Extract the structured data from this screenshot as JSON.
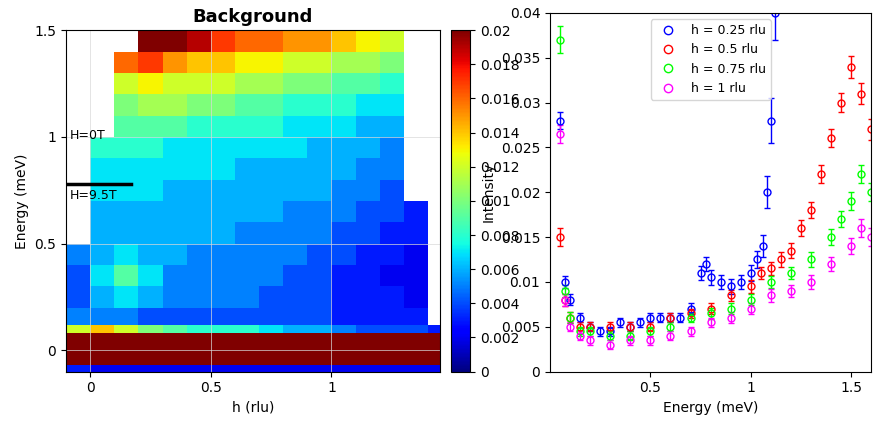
{
  "chart_data": [
    {
      "type": "heatmap",
      "title": "Background",
      "x_label": "h (rlu)",
      "y_label": "Energy (meV)",
      "xlim": [
        -0.1,
        1.45
      ],
      "ylim": [
        -0.1,
        1.5
      ],
      "xticks": [
        0,
        0.5,
        1
      ],
      "yticks": [
        0,
        0.5,
        1,
        1.5
      ],
      "x_edges": [
        -0.1,
        0.0,
        0.1,
        0.2,
        0.3,
        0.4,
        0.5,
        0.6,
        0.7,
        0.8,
        0.9,
        1.0,
        1.1,
        1.2,
        1.3,
        1.4,
        1.5
      ],
      "y_edges": [
        -0.1,
        -0.07,
        0.08,
        0.12,
        0.2,
        0.3,
        0.4,
        0.5,
        0.6,
        0.7,
        0.8,
        0.9,
        1.0,
        1.1,
        1.2,
        1.3,
        1.4,
        1.5
      ],
      "cells": [
        [
          0.003,
          0.002,
          0.002,
          0.002,
          0.002,
          0.002,
          0.002,
          0.002,
          0.002,
          0.002,
          0.002,
          0.002,
          0.002,
          0.002,
          0.002,
          0.002
        ],
        [
          0.05,
          0.05,
          0.05,
          0.05,
          0.05,
          0.05,
          0.05,
          0.05,
          0.05,
          0.05,
          0.05,
          0.05,
          0.05,
          0.05,
          0.05,
          0.05
        ],
        [
          0.012,
          0.014,
          0.012,
          0.01,
          0.009,
          0.008,
          0.008,
          0.008,
          0.007,
          0.006,
          0.006,
          0.005,
          0.004,
          0.004,
          0.004,
          0.003
        ],
        [
          0.005,
          0.005,
          0.005,
          0.004,
          0.004,
          0.004,
          0.004,
          0.004,
          0.004,
          0.004,
          0.004,
          0.003,
          0.003,
          0.003,
          0.003,
          null
        ],
        [
          0.004,
          0.006,
          0.007,
          0.006,
          0.005,
          0.005,
          0.005,
          0.005,
          0.004,
          0.004,
          0.004,
          0.003,
          0.003,
          0.003,
          0.002,
          null
        ],
        [
          0.004,
          0.007,
          0.009,
          0.007,
          0.005,
          0.005,
          0.005,
          0.005,
          0.005,
          0.004,
          0.004,
          0.003,
          0.003,
          0.002,
          0.002,
          null
        ],
        [
          0.005,
          0.006,
          0.007,
          0.006,
          0.006,
          0.005,
          0.005,
          0.005,
          0.005,
          0.005,
          0.004,
          0.004,
          0.003,
          0.003,
          0.002,
          null
        ],
        [
          null,
          0.006,
          0.006,
          0.006,
          0.006,
          0.006,
          0.006,
          0.005,
          0.005,
          0.005,
          0.005,
          0.004,
          0.004,
          0.003,
          0.003,
          null
        ],
        [
          null,
          0.006,
          0.006,
          0.006,
          0.006,
          0.006,
          0.006,
          0.006,
          0.006,
          0.005,
          0.005,
          0.005,
          0.004,
          0.004,
          0.003,
          null
        ],
        [
          null,
          0.007,
          0.007,
          0.007,
          0.006,
          0.006,
          0.006,
          0.006,
          0.006,
          0.006,
          0.006,
          0.005,
          0.005,
          0.004,
          null,
          null
        ],
        [
          null,
          0.007,
          0.007,
          0.007,
          0.007,
          0.007,
          0.007,
          0.006,
          0.006,
          0.006,
          0.006,
          0.006,
          0.005,
          0.005,
          null,
          null
        ],
        [
          null,
          0.008,
          0.008,
          0.008,
          0.007,
          0.007,
          0.007,
          0.007,
          0.007,
          0.007,
          0.006,
          0.006,
          0.006,
          0.005,
          null,
          null
        ],
        [
          null,
          null,
          0.009,
          0.009,
          0.009,
          0.008,
          0.008,
          0.008,
          0.008,
          0.007,
          0.007,
          0.007,
          0.006,
          0.006,
          null,
          null
        ],
        [
          null,
          null,
          0.01,
          0.011,
          0.011,
          0.01,
          0.01,
          0.009,
          0.009,
          0.008,
          0.008,
          0.008,
          0.007,
          0.007,
          null,
          null
        ],
        [
          null,
          null,
          0.012,
          0.013,
          0.012,
          0.012,
          0.012,
          0.011,
          0.011,
          0.01,
          0.01,
          0.009,
          0.009,
          0.008,
          null,
          null
        ],
        [
          null,
          null,
          0.016,
          0.017,
          0.015,
          0.014,
          0.014,
          0.013,
          0.013,
          0.012,
          0.012,
          0.011,
          0.011,
          0.01,
          null,
          null
        ],
        [
          null,
          null,
          null,
          0.022,
          0.02,
          0.019,
          0.017,
          0.016,
          0.016,
          0.015,
          0.015,
          0.014,
          0.013,
          0.012,
          null,
          null
        ]
      ],
      "colorbar_range": [
        0,
        0.02
      ],
      "colorbar_ticks": [
        0,
        0.002,
        0.004,
        0.006,
        0.008,
        0.01,
        0.012,
        0.014,
        0.016,
        0.018,
        0.02
      ],
      "field_boundary": {
        "energy": 0.78,
        "h_start": -0.1,
        "h_end": 0.17
      },
      "annotations": [
        "H=0T",
        "H=9.5T"
      ]
    },
    {
      "type": "errorbar",
      "x_label": "Energy (meV)",
      "y_label": "Intensity",
      "xlim": [
        0,
        1.6
      ],
      "ylim": [
        0,
        0.04
      ],
      "xticks": [
        0.5,
        1,
        1.5
      ],
      "yticks": [
        0,
        0.005,
        0.01,
        0.015,
        0.02,
        0.025,
        0.03,
        0.035,
        0.04
      ],
      "legend": "upper center",
      "marker": "o",
      "series": [
        {
          "name": "h = 0.25 rlu",
          "color": "#0000ff",
          "x": [
            0.05,
            0.075,
            0.1,
            0.15,
            0.2,
            0.25,
            0.3,
            0.35,
            0.4,
            0.45,
            0.5,
            0.55,
            0.6,
            0.65,
            0.7,
            0.75,
            0.775,
            0.8,
            0.85,
            0.9,
            0.95,
            1.0,
            1.03,
            1.06,
            1.08,
            1.1,
            1.12
          ],
          "values": [
            0.028,
            0.01,
            0.008,
            0.006,
            0.005,
            0.0045,
            0.0045,
            0.0055,
            0.005,
            0.0055,
            0.006,
            0.006,
            0.006,
            0.006,
            0.007,
            0.011,
            0.012,
            0.0105,
            0.01,
            0.0095,
            0.01,
            0.011,
            0.0125,
            0.014,
            0.02,
            0.028,
            0.04
          ],
          "errors": [
            0.001,
            0.0007,
            0.0006,
            0.0005,
            0.0005,
            0.0005,
            0.0005,
            0.0005,
            0.0005,
            0.0005,
            0.0005,
            0.0005,
            0.0005,
            0.0005,
            0.0006,
            0.0008,
            0.0008,
            0.0008,
            0.0008,
            0.0008,
            0.0008,
            0.0009,
            0.001,
            0.0012,
            0.0018,
            0.0025,
            0.003
          ]
        },
        {
          "name": "h = 0.5 rlu",
          "color": "#ff0000",
          "x": [
            0.05,
            0.075,
            0.1,
            0.15,
            0.2,
            0.3,
            0.4,
            0.5,
            0.6,
            0.7,
            0.8,
            0.9,
            1.0,
            1.05,
            1.1,
            1.15,
            1.2,
            1.25,
            1.3,
            1.35,
            1.4,
            1.45,
            1.5,
            1.55,
            1.6
          ],
          "values": [
            0.015,
            0.008,
            0.006,
            0.005,
            0.005,
            0.005,
            0.005,
            0.005,
            0.006,
            0.0065,
            0.007,
            0.0085,
            0.0095,
            0.011,
            0.0115,
            0.0125,
            0.0135,
            0.016,
            0.018,
            0.022,
            0.026,
            0.03,
            0.034,
            0.031,
            0.027
          ],
          "errors": [
            0.001,
            0.0007,
            0.0006,
            0.0005,
            0.0005,
            0.0005,
            0.0005,
            0.0005,
            0.0005,
            0.0005,
            0.0006,
            0.0006,
            0.0007,
            0.0007,
            0.0007,
            0.0008,
            0.0008,
            0.0009,
            0.0009,
            0.001,
            0.001,
            0.0011,
            0.0012,
            0.0012,
            0.0012
          ]
        },
        {
          "name": "h = 0.75 rlu",
          "color": "#00ff00",
          "x": [
            0.05,
            0.075,
            0.1,
            0.15,
            0.2,
            0.3,
            0.4,
            0.5,
            0.6,
            0.7,
            0.8,
            0.9,
            1.0,
            1.1,
            1.2,
            1.3,
            1.4,
            1.45,
            1.5,
            1.55,
            1.6
          ],
          "values": [
            0.037,
            0.009,
            0.006,
            0.0045,
            0.0045,
            0.004,
            0.004,
            0.0045,
            0.005,
            0.006,
            0.0065,
            0.007,
            0.008,
            0.01,
            0.011,
            0.0125,
            0.015,
            0.017,
            0.019,
            0.022,
            0.02
          ],
          "errors": [
            0.0015,
            0.0007,
            0.0006,
            0.0005,
            0.0005,
            0.0005,
            0.0005,
            0.0005,
            0.0005,
            0.0005,
            0.0006,
            0.0006,
            0.0006,
            0.0007,
            0.0007,
            0.0008,
            0.0009,
            0.0009,
            0.001,
            0.001,
            0.001
          ]
        },
        {
          "name": "h = 1 rlu",
          "color": "#ff00ff",
          "x": [
            0.05,
            0.075,
            0.1,
            0.15,
            0.2,
            0.3,
            0.4,
            0.5,
            0.6,
            0.7,
            0.8,
            0.9,
            1.0,
            1.1,
            1.2,
            1.3,
            1.4,
            1.5,
            1.55,
            1.6
          ],
          "values": [
            0.0265,
            0.008,
            0.005,
            0.004,
            0.0035,
            0.003,
            0.0035,
            0.0035,
            0.004,
            0.0045,
            0.0055,
            0.006,
            0.007,
            0.0085,
            0.009,
            0.01,
            0.012,
            0.014,
            0.016,
            0.015
          ],
          "errors": [
            0.001,
            0.0007,
            0.0005,
            0.0005,
            0.0005,
            0.0005,
            0.0005,
            0.0005,
            0.0005,
            0.0005,
            0.0005,
            0.0006,
            0.0006,
            0.0007,
            0.0007,
            0.0008,
            0.0008,
            0.0009,
            0.001,
            0.001
          ]
        }
      ]
    }
  ]
}
